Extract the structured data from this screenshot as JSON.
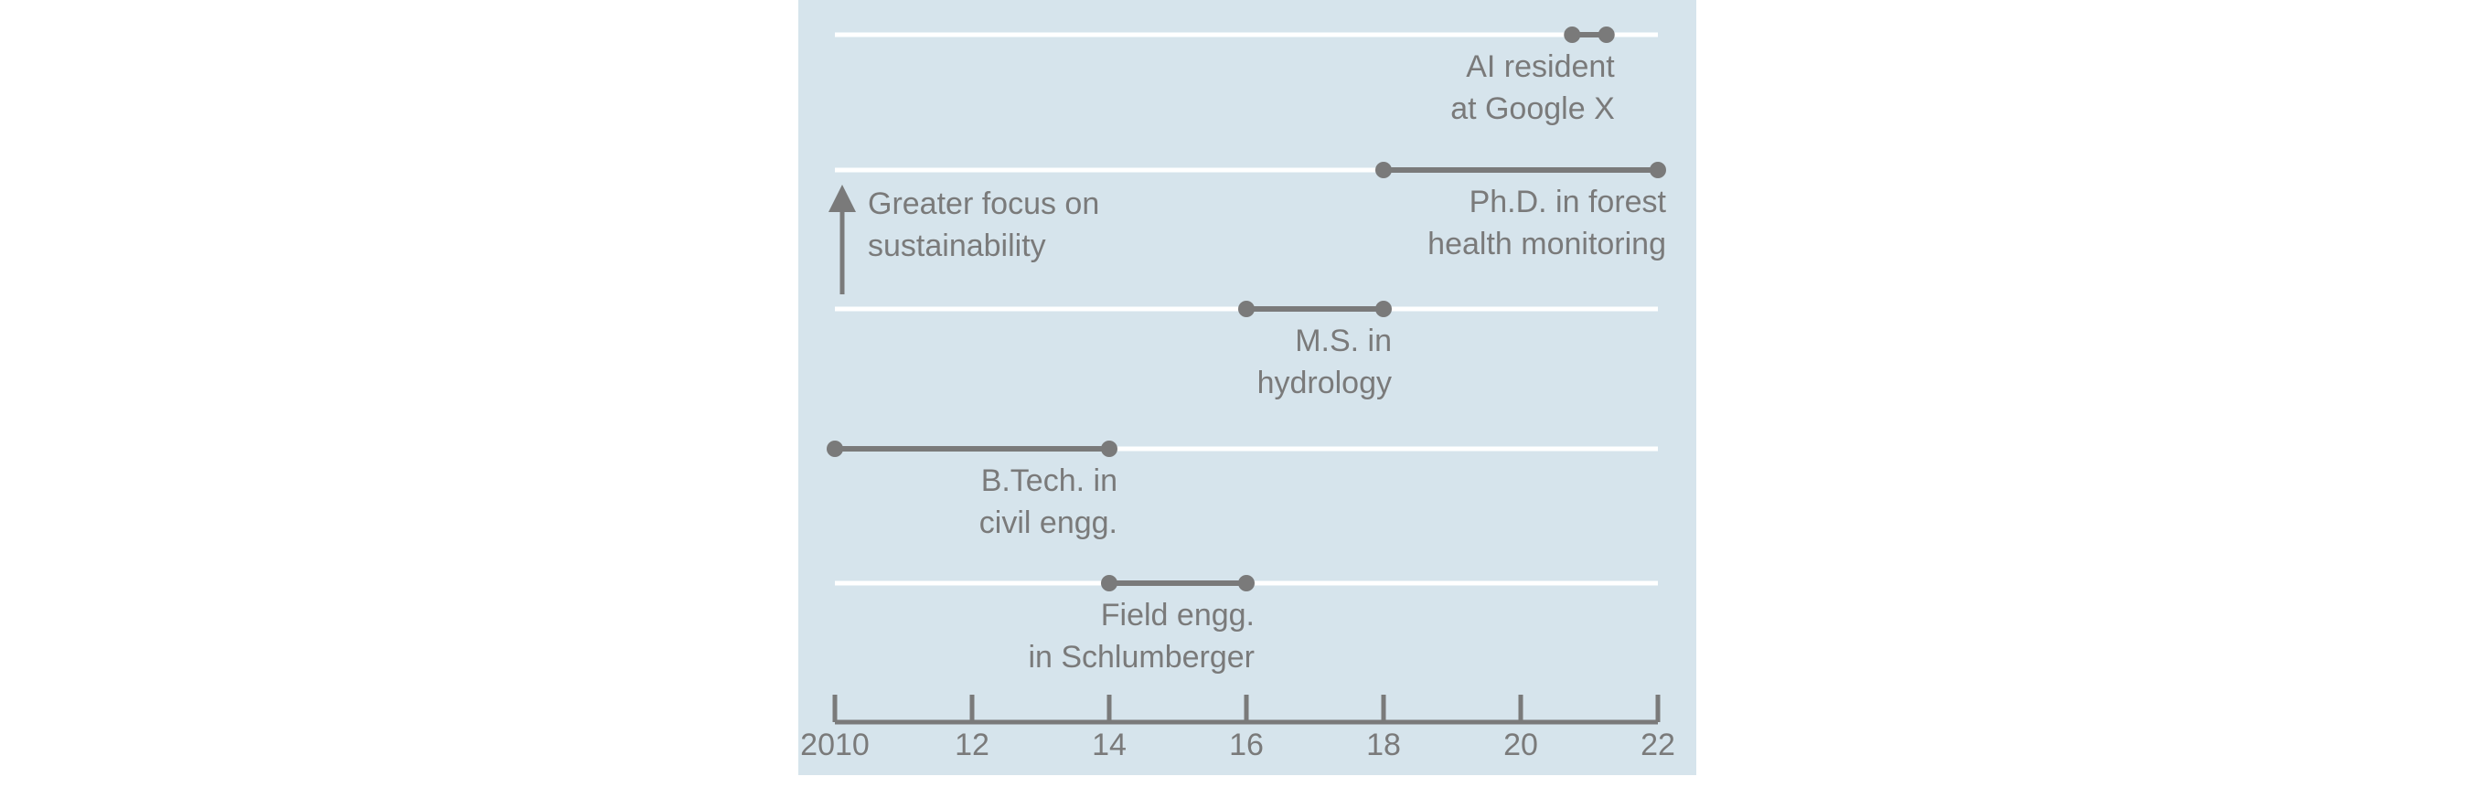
{
  "chart_data": {
    "type": "timeline",
    "title": "",
    "xlabel": "",
    "ylabel": "",
    "xlim": [
      2010,
      2022
    ],
    "x_ticks": [
      2010,
      2012,
      2014,
      2016,
      2018,
      2020,
      2022
    ],
    "x_tick_labels": [
      "2010",
      "12",
      "14",
      "16",
      "18",
      "20",
      "22"
    ],
    "tracks": [
      {
        "label_lines": [
          "AI resident",
          "at Google X"
        ],
        "start": 2020.75,
        "end": 2021.25
      },
      {
        "label_lines": [
          "Ph.D. in forest",
          "health monitoring"
        ],
        "start": 2018,
        "end": 2022
      },
      {
        "label_lines": [
          "M.S. in",
          "hydrology"
        ],
        "start": 2016,
        "end": 2018
      },
      {
        "label_lines": [
          "B.Tech. in",
          "civil engg."
        ],
        "start": 2010,
        "end": 2014
      },
      {
        "label_lines": [
          "Field engg.",
          "in Schlumberger"
        ],
        "start": 2014,
        "end": 2016
      }
    ],
    "annotation": {
      "lines": [
        "Greater focus on",
        "sustainability"
      ],
      "direction": "up"
    },
    "colors": {
      "panel": "#d6e4ec",
      "track": "#ffffff",
      "bar": "#7a7a7a",
      "text": "#7a7a7a"
    }
  }
}
